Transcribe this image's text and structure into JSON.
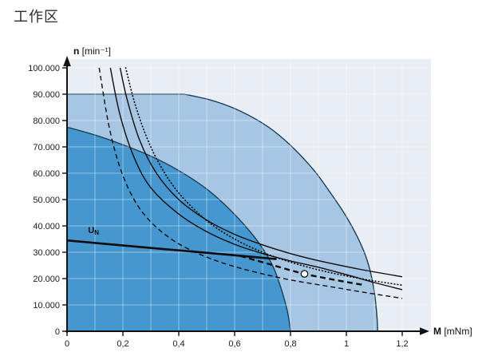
{
  "page": {
    "title": "工作区"
  },
  "chart_data": {
    "type": "area",
    "title": "工作区",
    "xlabel": {
      "symbol": "M",
      "unit": "[mNm]"
    },
    "ylabel": {
      "symbol": "n",
      "unit": "[min⁻¹]"
    },
    "xlim": [
      0,
      1.2
    ],
    "ylim": [
      0,
      100000
    ],
    "grid": {
      "show": true,
      "x_step": 0.1,
      "y_step": 10000
    },
    "x_ticks": [
      {
        "value": 0,
        "label": "0"
      },
      {
        "value": 0.2,
        "label": "0,2"
      },
      {
        "value": 0.4,
        "label": "0,4"
      },
      {
        "value": 0.6,
        "label": "0,6"
      },
      {
        "value": 0.8,
        "label": "0,8"
      },
      {
        "value": 1,
        "label": "1"
      },
      {
        "value": 1.2,
        "label": "1,2"
      }
    ],
    "y_ticks": [
      {
        "value": 0,
        "label": "0"
      },
      {
        "value": 10000,
        "label": "10.000"
      },
      {
        "value": 20000,
        "label": "20.000"
      },
      {
        "value": 30000,
        "label": "30.000"
      },
      {
        "value": 40000,
        "label": "40.000"
      },
      {
        "value": 50000,
        "label": "50.000"
      },
      {
        "value": 60000,
        "label": "60.000"
      },
      {
        "value": 70000,
        "label": "70.000"
      },
      {
        "value": 80000,
        "label": "80.000"
      },
      {
        "value": 90000,
        "label": "90.000"
      },
      {
        "value": 100000,
        "label": "100.000"
      }
    ],
    "colors": {
      "background": "#e9edf4",
      "region_light": "#a6c6e4",
      "region_dark": "#4697cf",
      "region_stroke": "#1a4058",
      "curve": "#0d0d0d",
      "axis": "#111111",
      "grid": "rgba(255,255,255,0.42)"
    },
    "regions": [
      {
        "name": "short-term-operation-region",
        "fill_key": "region_light",
        "straight": [
          [
            0,
            0
          ],
          [
            0,
            90000
          ],
          [
            0.42,
            90000
          ]
        ],
        "curve": [
          [
            0.42,
            90000
          ],
          [
            0.52,
            87600
          ],
          [
            0.62,
            83600
          ],
          [
            0.72,
            77600
          ],
          [
            0.8,
            70600
          ],
          [
            0.88,
            61600
          ],
          [
            0.94,
            53000
          ],
          [
            1.0,
            43500
          ],
          [
            1.05,
            33500
          ],
          [
            1.08,
            25000
          ],
          [
            1.1,
            15000
          ],
          [
            1.11,
            5000
          ],
          [
            1.112,
            0
          ]
        ]
      },
      {
        "name": "continuous-operation-region",
        "fill_key": "region_dark",
        "straight": [
          [
            0,
            0
          ],
          [
            0,
            77500
          ]
        ],
        "curve": [
          [
            0,
            77500
          ],
          [
            0.1,
            74500
          ],
          [
            0.2,
            70800
          ],
          [
            0.3,
            66500
          ],
          [
            0.4,
            61000
          ],
          [
            0.5,
            54000
          ],
          [
            0.58,
            46500
          ],
          [
            0.65,
            38500
          ],
          [
            0.7,
            31500
          ],
          [
            0.74,
            24000
          ],
          [
            0.77,
            15000
          ],
          [
            0.79,
            7000
          ],
          [
            0.8,
            0
          ]
        ]
      }
    ],
    "series": [
      {
        "name": "un-voltage-line",
        "style": "solid-bold",
        "label": {
          "text": "U",
          "sub": "N"
        },
        "label_pos": [
          0.075,
          37200
        ],
        "points": [
          [
            0,
            34500
          ],
          [
            0.25,
            32100
          ],
          [
            0.5,
            29800
          ],
          [
            0.75,
            27400
          ]
        ]
      },
      {
        "name": "operating-line-dashed-bold",
        "style": "dashed-bold",
        "points": [
          [
            0.62,
            28600
          ],
          [
            0.72,
            25600
          ],
          [
            0.85,
            21800
          ],
          [
            1.0,
            18700
          ],
          [
            1.06,
            17600
          ]
        ]
      },
      {
        "name": "limit-curve-solid-inner",
        "style": "solid",
        "points": [
          [
            0.155,
            100000
          ],
          [
            0.19,
            82000
          ],
          [
            0.24,
            66000
          ],
          [
            0.3,
            54500
          ],
          [
            0.4,
            44500
          ],
          [
            0.5,
            37800
          ],
          [
            0.6,
            33000
          ],
          [
            0.7,
            29500
          ],
          [
            0.8,
            26700
          ],
          [
            0.9,
            24300
          ],
          [
            1.0,
            21500
          ],
          [
            1.1,
            18500
          ],
          [
            1.2,
            15800
          ]
        ]
      },
      {
        "name": "limit-curve-solid-outer",
        "style": "solid",
        "points": [
          [
            0.19,
            100000
          ],
          [
            0.215,
            88000
          ],
          [
            0.26,
            72500
          ],
          [
            0.32,
            60000
          ],
          [
            0.4,
            50000
          ],
          [
            0.5,
            42200
          ],
          [
            0.6,
            36800
          ],
          [
            0.7,
            32800
          ],
          [
            0.8,
            29500
          ],
          [
            0.9,
            26800
          ],
          [
            1.05,
            23500
          ],
          [
            1.2,
            20700
          ]
        ]
      },
      {
        "name": "limit-curve-dashed",
        "style": "dashed",
        "points": [
          [
            0.115,
            100000
          ],
          [
            0.15,
            78000
          ],
          [
            0.19,
            62000
          ],
          [
            0.24,
            50000
          ],
          [
            0.3,
            41500
          ],
          [
            0.38,
            34500
          ],
          [
            0.47,
            29500
          ],
          [
            0.57,
            25500
          ],
          [
            0.68,
            22300
          ],
          [
            0.8,
            19500
          ],
          [
            0.95,
            16800
          ],
          [
            1.08,
            14500
          ],
          [
            1.2,
            12500
          ]
        ]
      },
      {
        "name": "limit-curve-dotted",
        "style": "dotted",
        "points": [
          [
            0.21,
            100000
          ],
          [
            0.24,
            87500
          ],
          [
            0.28,
            75000
          ],
          [
            0.33,
            63600
          ],
          [
            0.4,
            52500
          ],
          [
            0.5,
            42000
          ],
          [
            0.6,
            35000
          ],
          [
            0.7,
            30000
          ],
          [
            0.8,
            26250
          ],
          [
            0.9,
            23300
          ],
          [
            1.0,
            21000
          ],
          [
            1.1,
            19100
          ],
          [
            1.2,
            17500
          ]
        ]
      }
    ],
    "operating_point": {
      "M": 0.85,
      "n": 21800
    }
  }
}
